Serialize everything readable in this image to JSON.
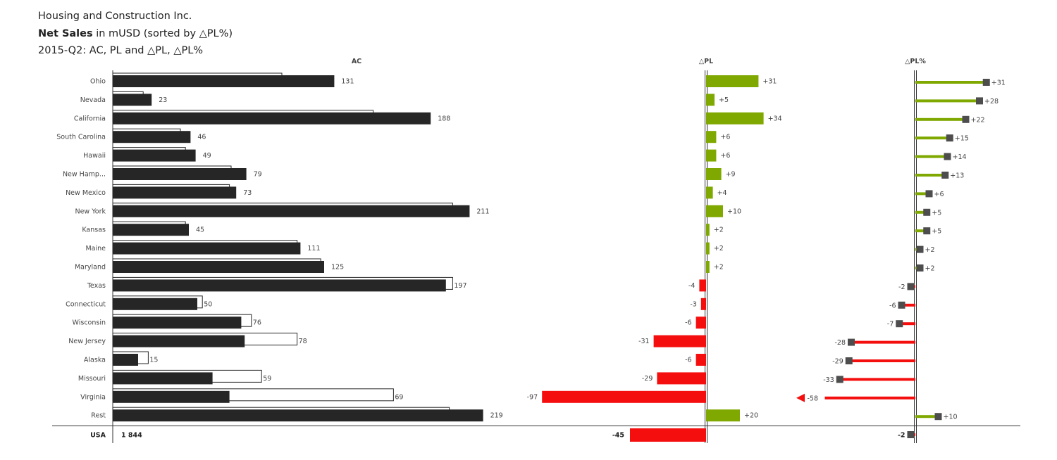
{
  "header": {
    "company": "Housing and Construction Inc.",
    "measure_bold": "Net Sales",
    "measure_rest": " in mUSD (sorted by △PL%)",
    "period": "2015-Q2: AC, PL and  △PL, △PL%"
  },
  "chart_data": {
    "type": "bar",
    "columns": [
      "AC",
      "△PL",
      "△PL%"
    ],
    "categories": [
      "Ohio",
      "Nevada",
      "California",
      "South Carolina",
      "Hawaii",
      "New Hamp...",
      "New Mexico",
      "New York",
      "Kansas",
      "Maine",
      "Maryland",
      "Texas",
      "Connecticut",
      "Wisconsin",
      "New Jersey",
      "Alaska",
      "Missouri",
      "Virginia",
      "Rest"
    ],
    "series": [
      {
        "name": "AC",
        "values": [
          131,
          23,
          188,
          46,
          49,
          79,
          73,
          211,
          45,
          111,
          125,
          197,
          50,
          76,
          78,
          15,
          59,
          69,
          219
        ]
      },
      {
        "name": "PL",
        "values": [
          100,
          18,
          154,
          40,
          43,
          70,
          69,
          201,
          43,
          109,
          123,
          201,
          53,
          82,
          109,
          21,
          88,
          166,
          199
        ]
      },
      {
        "name": "△PL",
        "values": [
          31,
          5,
          34,
          6,
          6,
          9,
          4,
          10,
          2,
          2,
          2,
          -4,
          -3,
          -6,
          -31,
          -6,
          -29,
          -97,
          20
        ]
      },
      {
        "name": "△PL%",
        "values": [
          31,
          28,
          22,
          15,
          14,
          13,
          6,
          5,
          5,
          2,
          2,
          -2,
          -6,
          -7,
          -28,
          -29,
          -33,
          -58,
          10
        ]
      }
    ],
    "labels": {
      "AC": [
        "131",
        "23",
        "188",
        "46",
        "49",
        "79",
        "73",
        "211",
        "45",
        "111",
        "125",
        "197",
        "50",
        "76",
        "78",
        "15",
        "59",
        "69",
        "219"
      ],
      "dPL": [
        "+31",
        "+5",
        "+34",
        "+6",
        "+6",
        "+9",
        "+4",
        "+10",
        "+2",
        "+2",
        "+2",
        "-4",
        "-3",
        "-6",
        "-31",
        "-6",
        "-29",
        "-97",
        "+20"
      ],
      "dPLp": [
        "+31",
        "+28",
        "+22",
        "+15",
        "+14",
        "+13",
        "+6",
        "+5",
        "+5",
        "+2",
        "+2",
        "-2",
        "-6",
        "-7",
        "-28",
        "-29",
        "-33",
        "-58",
        "+10"
      ]
    },
    "total": {
      "label": "USA",
      "AC": "1 844",
      "dPL": "-45",
      "dPLp": "-2",
      "dPL_value": -45,
      "dPLp_value": -2
    },
    "colors": {
      "ac": "#262626",
      "positive": "#7fa800",
      "negative": "#f50e0e",
      "marker": "#4d4d4d",
      "axis": "#333333"
    }
  }
}
